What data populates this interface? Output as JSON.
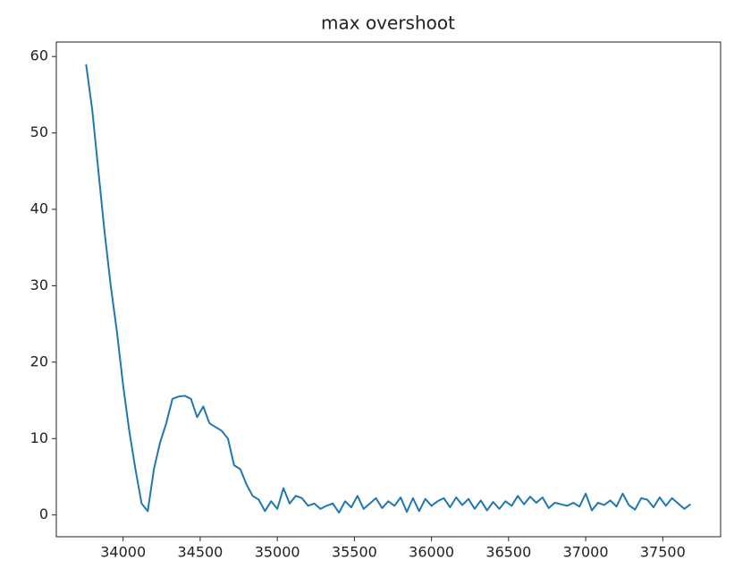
{
  "chart_data": {
    "type": "line",
    "title": "max overshoot",
    "color": "#1f77b4",
    "x": [
      33760,
      33800,
      33840,
      33880,
      33920,
      33960,
      34000,
      34040,
      34080,
      34120,
      34160,
      34200,
      34240,
      34280,
      34320,
      34360,
      34400,
      34440,
      34480,
      34520,
      34560,
      34600,
      34640,
      34680,
      34720,
      34760,
      34800,
      34840,
      34880,
      34920,
      34960,
      35000,
      35040,
      35080,
      35120,
      35160,
      35200,
      35240,
      35280,
      35320,
      35360,
      35400,
      35440,
      35480,
      35520,
      35560,
      35600,
      35640,
      35680,
      35720,
      35760,
      35800,
      35840,
      35880,
      35920,
      35960,
      36000,
      36040,
      36080,
      36120,
      36160,
      36200,
      36240,
      36280,
      36320,
      36360,
      36400,
      36440,
      36480,
      36520,
      36560,
      36600,
      36640,
      36680,
      36720,
      36760,
      36800,
      36840,
      36880,
      36920,
      36960,
      37000,
      37040,
      37080,
      37120,
      37160,
      37200,
      37240,
      37280,
      37320,
      37360,
      37400,
      37440,
      37480,
      37520,
      37560,
      37600,
      37640,
      37680
    ],
    "values": [
      59,
      53,
      45,
      37,
      30,
      24,
      17,
      11,
      6,
      1.5,
      0.5,
      6,
      9.5,
      12,
      15.2,
      15.5,
      15.6,
      15.2,
      12.8,
      14.2,
      12,
      11.5,
      11,
      10,
      6.5,
      6,
      4,
      2.5,
      2,
      0.5,
      1.8,
      0.8,
      3.5,
      1.5,
      2.5,
      2.2,
      1.2,
      1.5,
      0.8,
      1.2,
      1.5,
      0.3,
      1.8,
      1.0,
      2.5,
      0.8,
      1.5,
      2.2,
      0.9,
      1.8,
      1.2,
      2.3,
      0.4,
      2.2,
      0.5,
      2.1,
      1.2,
      1.8,
      2.2,
      1.0,
      2.3,
      1.3,
      2.1,
      0.8,
      1.9,
      0.6,
      1.7,
      0.8,
      1.8,
      1.2,
      2.5,
      1.4,
      2.4,
      1.6,
      2.3,
      0.9,
      1.6,
      1.4,
      1.2,
      1.6,
      1.1,
      2.8,
      0.6,
      1.6,
      1.3,
      1.9,
      1.1,
      2.8,
      1.3,
      0.7,
      2.2,
      2.0,
      1.0,
      2.3,
      1.2,
      2.2,
      1.5,
      0.8,
      1.4
    ],
    "xlim": [
      33567,
      37875
    ],
    "xticks": [
      34000,
      34500,
      35000,
      35500,
      36000,
      36500,
      37000,
      37500
    ],
    "ylim": [
      -2.85,
      61.9
    ],
    "yticks": [
      0,
      10,
      20,
      30,
      40,
      50,
      60
    ]
  }
}
